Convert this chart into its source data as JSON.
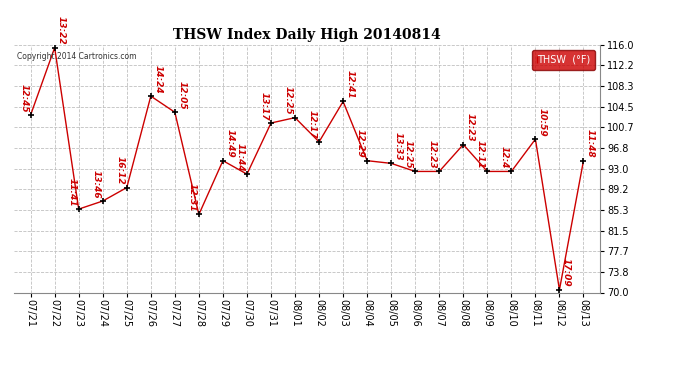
{
  "title": "THSW Index Daily High 20140814",
  "copyright": "Copyright 2014 Cartronics.com",
  "legend_label": "THSW  (°F)",
  "legend_bg": "#cc0000",
  "legend_text_color": "#ffffff",
  "background_color": "#ffffff",
  "line_color": "#cc0000",
  "marker_color": "#000000",
  "ylim": [
    70.0,
    116.0
  ],
  "yticks": [
    70.0,
    73.8,
    77.7,
    81.5,
    85.3,
    89.2,
    93.0,
    96.8,
    100.7,
    104.5,
    108.3,
    112.2,
    116.0
  ],
  "grid_color": "#c0c0c0",
  "dates": [
    "07/21",
    "07/22",
    "07/23",
    "07/24",
    "07/25",
    "07/26",
    "07/27",
    "07/28",
    "07/29",
    "07/30",
    "07/31",
    "08/01",
    "08/02",
    "08/03",
    "08/04",
    "08/05",
    "08/06",
    "08/07",
    "08/08",
    "08/09",
    "08/10",
    "08/11",
    "08/12",
    "08/13"
  ],
  "values": [
    103.0,
    115.5,
    85.5,
    87.0,
    89.5,
    106.5,
    103.5,
    84.5,
    94.5,
    92.0,
    101.5,
    102.5,
    98.0,
    105.5,
    94.5,
    94.0,
    92.5,
    92.5,
    97.5,
    92.5,
    92.5,
    98.5,
    70.5,
    94.5
  ],
  "labels": [
    "12:45",
    "13:22",
    "11:41",
    "13:46",
    "16:12",
    "14:24",
    "12:05",
    "12:31",
    "14:49",
    "11:44",
    "13:17",
    "12:25",
    "12:17",
    "12:41",
    "12:29",
    "13:33",
    "12:25",
    "12:23",
    "12:23",
    "12:11",
    "12:4",
    "10:59",
    "17:09",
    "11:48"
  ],
  "label_rotation": 270,
  "label_fontsize": 6.5,
  "title_fontsize": 10,
  "tick_fontsize": 7
}
